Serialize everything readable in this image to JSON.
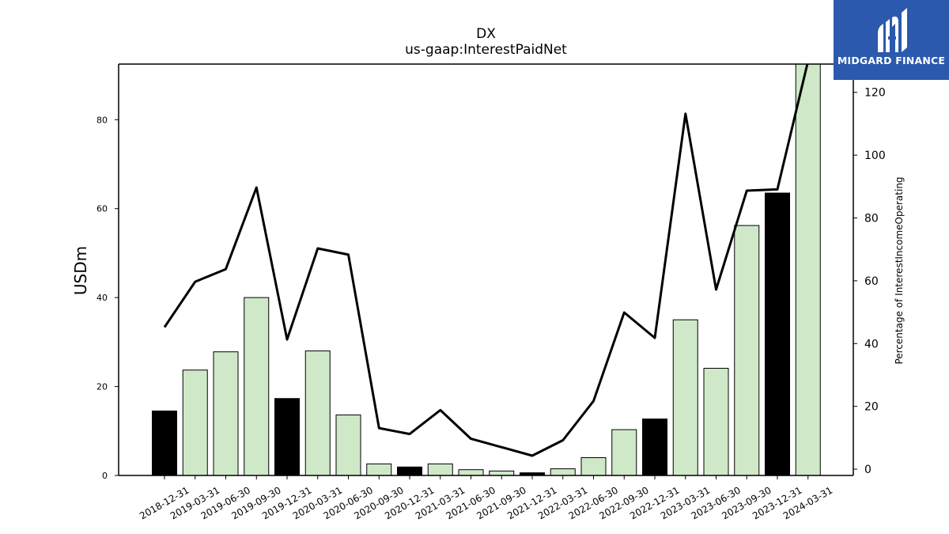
{
  "chart_data": {
    "type": "bar+line",
    "title": "DX",
    "subtitle": "us-gaap:InterestPaidNet",
    "ylabel": "USDm",
    "ylabel_right": "Percentage of InterestIncomeOperating",
    "ylim": [
      0,
      92.5
    ],
    "ylim_right": [
      -2,
      129
    ],
    "yticks": [
      0,
      20,
      40,
      60,
      80
    ],
    "yticks_right": [
      0,
      20,
      40,
      60,
      80,
      100,
      120
    ],
    "categories": [
      "2018-12-31",
      "2019-03-31",
      "2019-06-30",
      "2019-09-30",
      "2019-12-31",
      "2020-03-31",
      "2020-06-30",
      "2020-09-30",
      "2020-12-31",
      "2021-03-31",
      "2021-06-30",
      "2021-09-30",
      "2021-12-31",
      "2022-03-31",
      "2022-06-30",
      "2022-09-30",
      "2022-12-31",
      "2023-03-31",
      "2023-06-30",
      "2023-09-30",
      "2023-12-31",
      "2024-03-31"
    ],
    "series": [
      {
        "kind": "bar",
        "values": [
          14.5,
          23.7,
          27.8,
          40.0,
          17.3,
          28.0,
          13.6,
          2.6,
          1.9,
          2.6,
          1.3,
          1.0,
          0.6,
          1.5,
          4.0,
          10.3,
          12.7,
          35.0,
          24.1,
          56.2,
          63.5,
          93.0
        ],
        "colors": [
          "#000000",
          "#cfe9c8",
          "#cfe9c8",
          "#cfe9c8",
          "#000000",
          "#cfe9c8",
          "#cfe9c8",
          "#cfe9c8",
          "#000000",
          "#cfe9c8",
          "#cfe9c8",
          "#cfe9c8",
          "#000000",
          "#cfe9c8",
          "#cfe9c8",
          "#cfe9c8",
          "#000000",
          "#cfe9c8",
          "#cfe9c8",
          "#cfe9c8",
          "#000000",
          "#cfe9c8"
        ]
      },
      {
        "kind": "line",
        "axis": "right",
        "color": "#000000",
        "values": [
          45.2,
          59.7,
          63.7,
          89.7,
          41.3,
          70.3,
          68.3,
          13.1,
          11.2,
          18.8,
          9.7,
          7.0,
          4.3,
          9.2,
          21.7,
          49.9,
          41.8,
          113.2,
          57.2,
          88.7,
          89.1,
          130.0
        ]
      }
    ]
  },
  "logo": {
    "text": "MIDGARD FINANCE",
    "background": "#2b59ad"
  }
}
